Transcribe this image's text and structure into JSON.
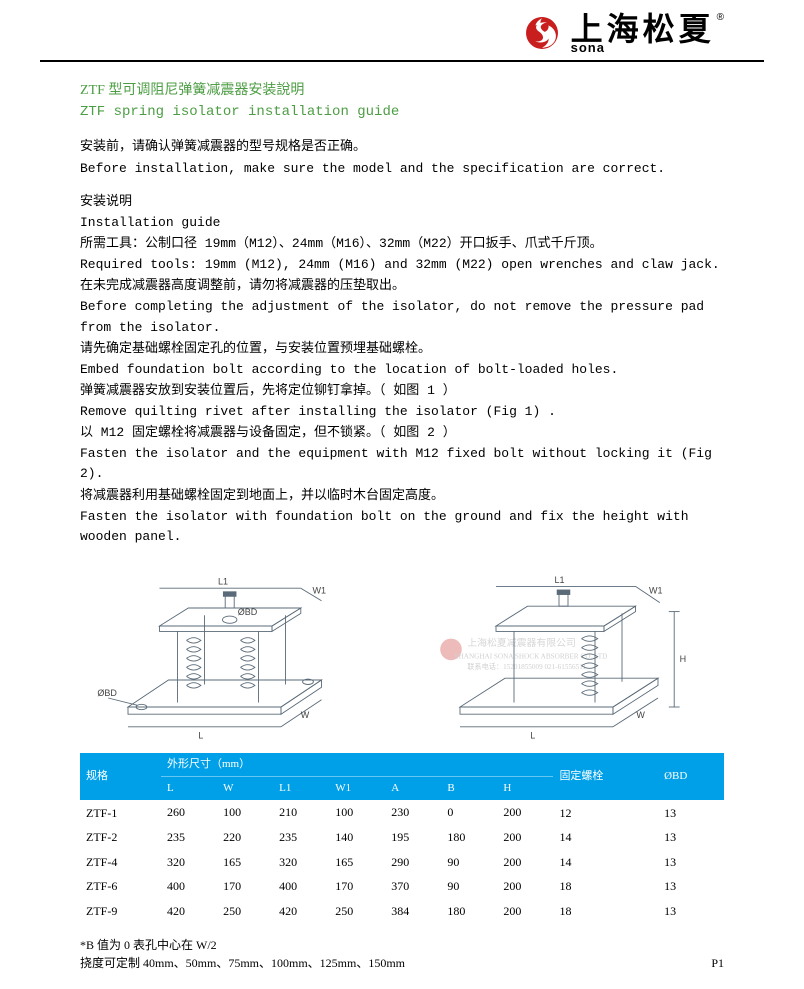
{
  "header": {
    "brand_cn": "上海松夏",
    "brand_en": "sona",
    "trademark": "®",
    "logo_color": "#c91e1e",
    "logo_accent": "#000000",
    "underline_color": "#000000"
  },
  "titles": {
    "cn": "ZTF 型可调阻尼弹簧减震器安装說明",
    "en": "ZTF spring isolator installation guide",
    "title_color": "#4c9d43"
  },
  "body": [
    "安装前，请确认弹簧减震器的型号规格是否正确。",
    "Before installation, make sure the model and the specification are  correct.",
    "",
    "安装说明",
    "Installation guide",
    "所需工具：公制口径 19mm（M12）、24mm（M16）、32mm（M22）开口扳手、爪式千斤顶。",
    "Required tools: 19mm (M12), 24mm (M16) and 32mm (M22) open wrenches and claw jack.",
    "在未完成减震器高度调整前，请勿将减震器的压垫取出。",
    "Before completing the adjustment of the isolator, do not remove the pressure pad from the isolator.",
    "请先确定基础螺栓固定孔的位置，与安装位置预埋基础螺栓。",
    "Embed foundation bolt according to the location of bolt-loaded holes.",
    "弹簧减震器安放到安装位置后，先将定位铆钉拿掉。（ 如图 1 ）",
    "Remove quilting rivet after installing the isolator (Fig 1) .",
    "以 M12 固定螺栓将减震器与设备固定，但不锁紧。（ 如图 2 ）",
    "Fasten the isolator and the equipment with M12 fixed bolt without locking it (Fig 2).",
    "将减震器利用基础螺栓固定到地面上，并以临时木台固定高度。",
    "Fasten the isolator with foundation bolt on the ground and fix the height with wooden panel."
  ],
  "diagram": {
    "labels_left": [
      "L1",
      "W1",
      "ØBD",
      "ØBD",
      "L",
      "W"
    ],
    "labels_right": [
      "L1",
      "W1",
      "H",
      "L",
      "W"
    ],
    "watermark_lines": [
      "上海松夏减震器有限公司",
      "SHANGHAI SONA SHOCK ABSORBER CO.,LTD",
      "联系电话：15201855009  021-61556511"
    ],
    "watermark_color": "#d0d0d0",
    "line_color": "#5a6a78",
    "line_width": 1
  },
  "table": {
    "header_bg": "#00a0e9",
    "header_fg": "#ffffff",
    "top_headers": [
      "规格",
      "外形尺寸（mm）",
      "",
      "",
      "",
      "",
      "",
      "",
      "固定螺栓",
      "ØBD"
    ],
    "sub_headers": [
      "",
      "L",
      "W",
      "L1",
      "W1",
      "A",
      "B",
      "H",
      "",
      ""
    ],
    "rows": [
      [
        "ZTF-1",
        "260",
        "100",
        "210",
        "100",
        "230",
        "0",
        "200",
        "12",
        "13"
      ],
      [
        "ZTF-2",
        "235",
        "220",
        "235",
        "140",
        "195",
        "180",
        "200",
        "14",
        "13"
      ],
      [
        "ZTF-4",
        "320",
        "165",
        "320",
        "165",
        "290",
        "90",
        "200",
        "14",
        "13"
      ],
      [
        "ZTF-6",
        "400",
        "170",
        "400",
        "170",
        "370",
        "90",
        "200",
        "18",
        "13"
      ],
      [
        "ZTF-9",
        "420",
        "250",
        "420",
        "250",
        "384",
        "180",
        "200",
        "18",
        "13"
      ]
    ]
  },
  "footnotes": {
    "note1": "*B 值为 0 表孔中心在 W/2",
    "note2": "挠度可定制 40mm、50mm、75mm、100mm、125mm、150mm",
    "page": "P1"
  }
}
